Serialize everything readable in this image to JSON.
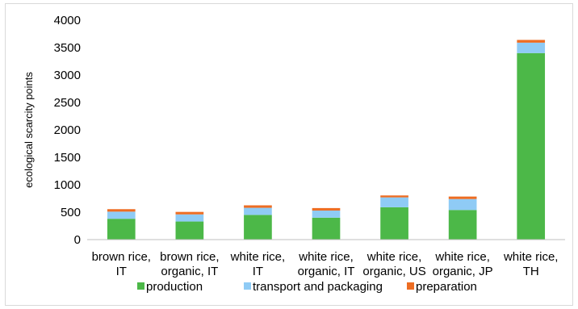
{
  "chart_data": {
    "type": "bar",
    "stacked": true,
    "categories": [
      [
        "brown rice,",
        "IT"
      ],
      [
        "brown rice,",
        "organic, IT"
      ],
      [
        "white rice,",
        "IT"
      ],
      [
        "white rice,",
        "organic, IT"
      ],
      [
        "white rice,",
        "organic, US"
      ],
      [
        "white rice,",
        "organic, JP"
      ],
      [
        "white rice,",
        "TH"
      ]
    ],
    "series": [
      {
        "name": "production",
        "color": "#4cb848",
        "values": [
          380,
          330,
          450,
          400,
          590,
          540,
          3400
        ]
      },
      {
        "name": "transport and packaging",
        "color": "#8fcbf5",
        "values": [
          130,
          130,
          130,
          130,
          180,
          200,
          190
        ]
      },
      {
        "name": "preparation",
        "color": "#ed6d23",
        "values": [
          45,
          45,
          45,
          45,
          35,
          45,
          50
        ]
      }
    ],
    "ylabel": "ecological scarcity points",
    "ylim": [
      0,
      4000
    ],
    "yticks": [
      0,
      500,
      1000,
      1500,
      2000,
      2500,
      3000,
      3500,
      4000
    ],
    "grid": false,
    "legend_position": "bottom"
  }
}
